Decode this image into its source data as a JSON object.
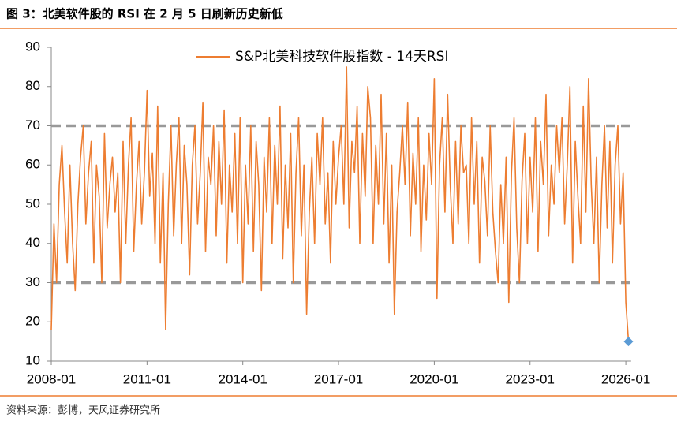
{
  "chart_data": {
    "type": "line",
    "title": "图 3：北美软件股的 RSI 在 2 月 5 日刷新历史新低",
    "source": "资料来源：彭博，天风证券研究所",
    "x": [
      "2008-01",
      "2008-02",
      "2008-03",
      "2008-04",
      "2008-05",
      "2008-06",
      "2008-07",
      "2008-08",
      "2008-09",
      "2008-10",
      "2008-11",
      "2008-12",
      "2009-01",
      "2009-02",
      "2009-03",
      "2009-04",
      "2009-05",
      "2009-06",
      "2009-07",
      "2009-08",
      "2009-09",
      "2009-10",
      "2009-11",
      "2009-12",
      "2010-01",
      "2010-02",
      "2010-03",
      "2010-04",
      "2010-05",
      "2010-06",
      "2010-07",
      "2010-08",
      "2010-09",
      "2010-10",
      "2010-11",
      "2010-12",
      "2011-01",
      "2011-02",
      "2011-03",
      "2011-04",
      "2011-05",
      "2011-06",
      "2011-07",
      "2011-08",
      "2011-09",
      "2011-10",
      "2011-11",
      "2011-12",
      "2012-01",
      "2012-02",
      "2012-03",
      "2012-04",
      "2012-05",
      "2012-06",
      "2012-07",
      "2012-08",
      "2012-09",
      "2012-10",
      "2012-11",
      "2012-12",
      "2013-01",
      "2013-02",
      "2013-03",
      "2013-04",
      "2013-05",
      "2013-06",
      "2013-07",
      "2013-08",
      "2013-09",
      "2013-10",
      "2013-11",
      "2013-12",
      "2014-01",
      "2014-02",
      "2014-03",
      "2014-04",
      "2014-05",
      "2014-06",
      "2014-07",
      "2014-08",
      "2014-09",
      "2014-10",
      "2014-11",
      "2014-12",
      "2015-01",
      "2015-02",
      "2015-03",
      "2015-04",
      "2015-05",
      "2015-06",
      "2015-07",
      "2015-08",
      "2015-09",
      "2015-10",
      "2015-11",
      "2015-12",
      "2016-01",
      "2016-02",
      "2016-03",
      "2016-04",
      "2016-05",
      "2016-06",
      "2016-07",
      "2016-08",
      "2016-09",
      "2016-10",
      "2016-11",
      "2016-12",
      "2017-01",
      "2017-02",
      "2017-03",
      "2017-04",
      "2017-05",
      "2017-06",
      "2017-07",
      "2017-08",
      "2017-09",
      "2017-10",
      "2017-11",
      "2017-12",
      "2018-01",
      "2018-02",
      "2018-03",
      "2018-04",
      "2018-05",
      "2018-06",
      "2018-07",
      "2018-08",
      "2018-09",
      "2018-10",
      "2018-11",
      "2018-12",
      "2019-01",
      "2019-02",
      "2019-03",
      "2019-04",
      "2019-05",
      "2019-06",
      "2019-07",
      "2019-08",
      "2019-09",
      "2019-10",
      "2019-11",
      "2019-12",
      "2020-01",
      "2020-02",
      "2020-03",
      "2020-04",
      "2020-05",
      "2020-06",
      "2020-07",
      "2020-08",
      "2020-09",
      "2020-10",
      "2020-11",
      "2020-12",
      "2021-01",
      "2021-02",
      "2021-03",
      "2021-04",
      "2021-05",
      "2021-06",
      "2021-07",
      "2021-08",
      "2021-09",
      "2021-10",
      "2021-11",
      "2021-12",
      "2022-01",
      "2022-02",
      "2022-03",
      "2022-04",
      "2022-05",
      "2022-06",
      "2022-07",
      "2022-08",
      "2022-09",
      "2022-10",
      "2022-11",
      "2022-12",
      "2023-01",
      "2023-02",
      "2023-03",
      "2023-04",
      "2023-05",
      "2023-06",
      "2023-07",
      "2023-08",
      "2023-09",
      "2023-10",
      "2023-11",
      "2023-12",
      "2024-01",
      "2024-02",
      "2024-03",
      "2024-04",
      "2024-05",
      "2024-06",
      "2024-07",
      "2024-08",
      "2024-09",
      "2024-10",
      "2024-11",
      "2024-12",
      "2025-01",
      "2025-02",
      "2025-03",
      "2025-04",
      "2025-05",
      "2025-06",
      "2025-07",
      "2025-08",
      "2025-09",
      "2025-10",
      "2025-11",
      "2025-12",
      "2026-01",
      "2026-02"
    ],
    "series": [
      {
        "name": "S&P北美科技软件股指数 - 14天RSI",
        "color": "#ed7d31",
        "values": [
          18,
          45,
          30,
          55,
          65,
          48,
          35,
          60,
          40,
          28,
          50,
          62,
          70,
          45,
          58,
          66,
          35,
          60,
          52,
          30,
          68,
          44,
          55,
          62,
          48,
          58,
          30,
          66,
          40,
          60,
          72,
          38,
          55,
          66,
          45,
          58,
          79,
          52,
          63,
          40,
          75,
          35,
          58,
          18,
          50,
          70,
          42,
          60,
          72,
          40,
          65,
          55,
          32,
          60,
          70,
          45,
          58,
          76,
          38,
          62,
          55,
          70,
          42,
          66,
          50,
          74,
          35,
          60,
          48,
          68,
          40,
          72,
          30,
          60,
          45,
          70,
          38,
          66,
          55,
          28,
          62,
          48,
          72,
          40,
          65,
          50,
          75,
          36,
          60,
          44,
          68,
          30,
          58,
          72,
          42,
          60,
          22,
          48,
          62,
          40,
          68,
          55,
          72,
          45,
          58,
          35,
          66,
          50,
          62,
          70,
          50,
          85,
          44,
          66,
          58,
          75,
          40,
          68,
          52,
          80,
          72,
          40,
          65,
          50,
          78,
          45,
          68,
          35,
          60,
          22,
          48,
          58,
          70,
          55,
          76,
          42,
          63,
          50,
          72,
          38,
          60,
          46,
          68,
          55,
          82,
          26,
          60,
          72,
          48,
          78,
          55,
          40,
          66,
          45,
          70,
          58,
          60,
          40,
          72,
          50,
          66,
          35,
          62,
          56,
          42,
          70,
          48,
          38,
          30,
          55,
          40,
          62,
          25,
          58,
          72,
          44,
          30,
          56,
          68,
          40,
          62,
          48,
          72,
          38,
          66,
          55,
          78,
          42,
          60,
          50,
          70,
          58,
          72,
          45,
          60,
          80,
          35,
          66,
          52,
          40,
          75,
          48,
          82,
          55,
          40,
          62,
          30,
          55,
          70,
          44,
          66,
          35,
          60,
          70,
          45,
          58,
          25,
          15
        ]
      }
    ],
    "highlight": {
      "x": "2026-02",
      "value": 15,
      "color": "#5b9bd5"
    },
    "reference_lines": [
      {
        "value": 30,
        "color": "#999999"
      },
      {
        "value": 70,
        "color": "#999999"
      }
    ],
    "xlim": [
      "2008-01",
      "2026-03"
    ],
    "xticks": [
      "2008-01",
      "2011-01",
      "2014-01",
      "2017-01",
      "2020-01",
      "2023-01",
      "2026-01"
    ],
    "ylim": [
      10,
      90
    ],
    "yticks": [
      10,
      20,
      30,
      40,
      50,
      60,
      70,
      80,
      90
    ],
    "legend": "top"
  }
}
